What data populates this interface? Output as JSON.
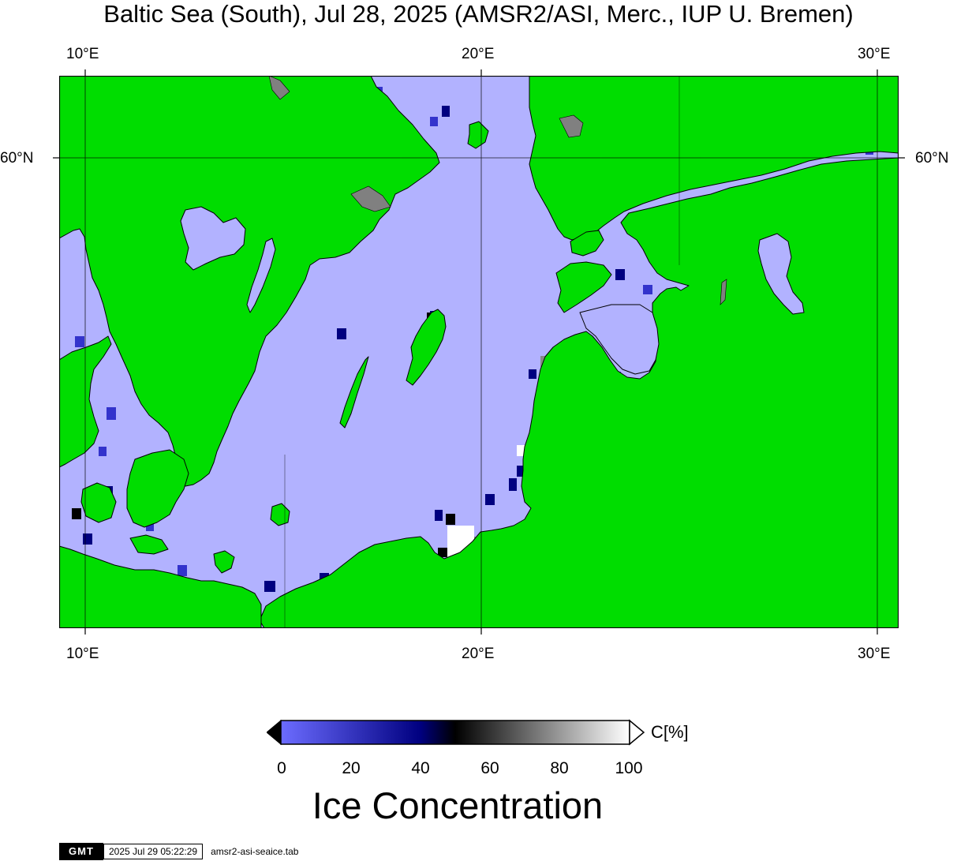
{
  "title": "Baltic Sea (South), Jul 28, 2025 (AMSR2/ASI, Merc., IUP U. Bremen)",
  "axes": {
    "top_lon_labels": [
      "10°E",
      "20°E",
      "30°E"
    ],
    "bottom_lon_labels": [
      "10°E",
      "20°E",
      "30°E"
    ],
    "left_lat_labels": [
      "60°N"
    ],
    "right_lat_labels": [
      "60°N"
    ]
  },
  "colors": {
    "land": "#00dd00",
    "open_water": "#b2b2ff",
    "coastline": "#000000",
    "gridline": "#000000",
    "masked": "#808080"
  },
  "colorbar": {
    "unit": "C[%]",
    "ticks": [
      "0",
      "20",
      "40",
      "60",
      "80",
      "100"
    ],
    "title": "Ice Concentration",
    "stops": [
      "#6c6cff",
      "#000080",
      "#000000",
      "#ffffff"
    ]
  },
  "footer": {
    "logo_text": "GMT",
    "timestamp": "2025 Jul 29 05:22:29",
    "source_file": "amsr2-asi-seaice.tab"
  }
}
